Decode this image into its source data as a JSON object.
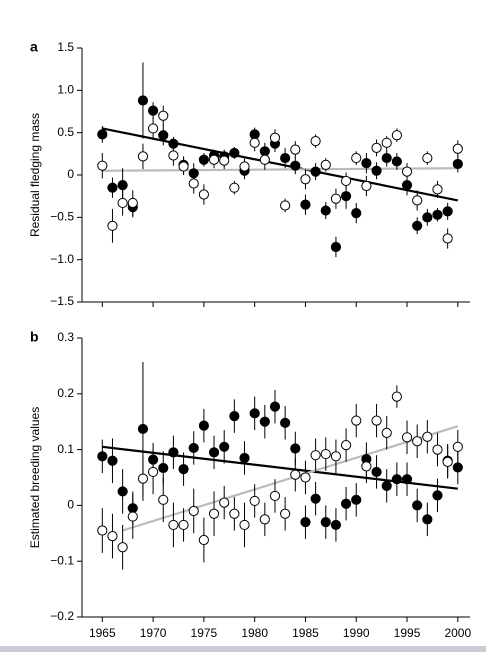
{
  "chart_data": [
    {
      "type": "scatter",
      "panel_label": "a",
      "y_label": "Residual fledging mass",
      "x": [
        1965,
        1966,
        1967,
        1968,
        1969,
        1970,
        1971,
        1972,
        1973,
        1974,
        1975,
        1976,
        1977,
        1978,
        1979,
        1980,
        1981,
        1982,
        1983,
        1984,
        1985,
        1986,
        1987,
        1988,
        1989,
        1990,
        1991,
        1992,
        1993,
        1994,
        1995,
        1996,
        1997,
        1998,
        1999,
        2000
      ],
      "xlim": [
        1963,
        2001.2
      ],
      "ylim": [
        -1.5,
        1.5
      ],
      "yticks": [
        1.5,
        {
          "value": 1.0,
          "label": "1.0"
        },
        0.5,
        0,
        {
          "value": -0.5,
          "label": "−0.5"
        },
        {
          "value": -1.0,
          "label": "−1.0"
        },
        {
          "value": -1.5,
          "label": "−1.5"
        }
      ],
      "series": [
        {
          "color": "#000000",
          "filled": true,
          "values": [
            0.48,
            -0.15,
            -0.12,
            -0.38,
            0.88,
            0.76,
            0.47,
            0.37,
            0.12,
            0.02,
            0.18,
            0.23,
            0.22,
            0.26,
            0.05,
            0.48,
            0.28,
            0.37,
            0.2,
            0.11,
            -0.35,
            0.04,
            -0.42,
            -0.85,
            -0.25,
            -0.45,
            0.14,
            0.05,
            0.2,
            0.16,
            -0.12,
            -0.6,
            -0.5,
            -0.47,
            -0.43,
            0.13
          ],
          "errors": [
            0.1,
            0.12,
            0.2,
            0.12,
            0.45,
            0.1,
            0.12,
            0.08,
            0.1,
            0.12,
            0.08,
            0.07,
            0.08,
            0.07,
            0.1,
            0.08,
            0.1,
            0.1,
            0.12,
            0.1,
            0.12,
            0.1,
            0.1,
            0.12,
            0.15,
            0.12,
            0.12,
            0.1,
            0.1,
            0.1,
            0.12,
            0.1,
            0.1,
            0.08,
            0.1,
            0.1
          ]
        },
        {
          "color": "#000000",
          "filled": false,
          "values": [
            0.11,
            -0.6,
            -0.33,
            -0.33,
            0.22,
            0.55,
            0.7,
            0.23,
            0.1,
            -0.1,
            -0.23,
            0.18,
            0.17,
            -0.15,
            0.1,
            0.38,
            0.18,
            0.44,
            -0.36,
            0.3,
            -0.05,
            0.4,
            0.12,
            -0.28,
            -0.07,
            0.2,
            -0.13,
            0.32,
            0.38,
            0.47,
            0.04,
            -0.3,
            0.2,
            -0.17,
            -0.75,
            0.31
          ],
          "errors": [
            0.15,
            0.2,
            0.15,
            0.15,
            0.15,
            0.12,
            0.12,
            0.12,
            0.1,
            0.12,
            0.12,
            0.1,
            0.1,
            0.08,
            0.1,
            0.1,
            0.12,
            0.1,
            0.08,
            0.1,
            0.12,
            0.08,
            0.08,
            0.12,
            0.1,
            0.08,
            0.12,
            0.1,
            0.08,
            0.08,
            0.1,
            0.12,
            0.08,
            0.1,
            0.12,
            0.1
          ]
        }
      ],
      "lines": [
        {
          "color": "#000000",
          "x": [
            1965,
            2000
          ],
          "values": [
            0.55,
            -0.3
          ]
        },
        {
          "color": "#bbbbbb",
          "x": [
            1965,
            2000
          ],
          "values": [
            0.05,
            0.08
          ]
        }
      ]
    },
    {
      "type": "scatter",
      "panel_label": "b",
      "y_label": "Estimated breeding values",
      "x": [
        1965,
        1966,
        1967,
        1968,
        1969,
        1970,
        1971,
        1972,
        1973,
        1974,
        1975,
        1976,
        1977,
        1978,
        1979,
        1980,
        1981,
        1982,
        1983,
        1984,
        1985,
        1986,
        1987,
        1988,
        1989,
        1990,
        1991,
        1992,
        1993,
        1994,
        1995,
        1996,
        1997,
        1998,
        1999,
        2000
      ],
      "xlim": [
        1963,
        2001.2
      ],
      "ylim": [
        -0.2,
        0.3
      ],
      "xticks": [
        1965,
        1970,
        1975,
        1980,
        1985,
        1990,
        1995,
        2000
      ],
      "yticks": [
        0.3,
        0.2,
        0.1,
        0,
        {
          "value": -0.1,
          "label": "−0.1"
        },
        {
          "value": -0.2,
          "label": "−0.2"
        }
      ],
      "series": [
        {
          "color": "#000000",
          "filled": true,
          "values": [
            0.088,
            0.08,
            0.025,
            -0.005,
            0.137,
            0.082,
            0.067,
            0.095,
            0.065,
            0.103,
            0.143,
            0.095,
            0.105,
            0.16,
            0.085,
            0.165,
            0.15,
            0.177,
            0.148,
            0.102,
            -0.03,
            0.012,
            -0.03,
            -0.035,
            0.003,
            0.01,
            0.083,
            0.06,
            0.035,
            0.047,
            0.047,
            0.0,
            -0.025,
            0.018,
            0.08,
            0.068
          ],
          "errors": [
            0.03,
            0.04,
            0.04,
            0.03,
            0.12,
            0.03,
            0.03,
            0.03,
            0.03,
            0.03,
            0.03,
            0.03,
            0.03,
            0.03,
            0.03,
            0.03,
            0.03,
            0.03,
            0.03,
            0.03,
            0.03,
            0.03,
            0.03,
            0.03,
            0.03,
            0.03,
            0.03,
            0.03,
            0.03,
            0.03,
            0.03,
            0.03,
            0.03,
            0.03,
            0.03,
            0.03
          ]
        },
        {
          "color": "#000000",
          "filled": false,
          "values": [
            -0.045,
            -0.055,
            -0.075,
            -0.02,
            0.048,
            0.06,
            0.01,
            -0.035,
            -0.035,
            -0.01,
            -0.062,
            -0.015,
            0.005,
            -0.015,
            -0.035,
            0.008,
            -0.025,
            0.017,
            -0.015,
            0.055,
            0.05,
            0.09,
            0.092,
            0.088,
            0.108,
            0.152,
            0.07,
            0.152,
            0.13,
            0.195,
            0.122,
            0.115,
            0.123,
            0.1,
            0.078,
            0.105
          ],
          "errors": [
            0.04,
            0.04,
            0.04,
            0.04,
            0.04,
            0.04,
            0.04,
            0.04,
            0.03,
            0.04,
            0.04,
            0.04,
            0.03,
            0.03,
            0.04,
            0.03,
            0.03,
            0.03,
            0.03,
            0.03,
            0.03,
            0.03,
            0.03,
            0.03,
            0.03,
            0.03,
            0.03,
            0.03,
            0.03,
            0.02,
            0.03,
            0.03,
            0.03,
            0.03,
            0.03,
            0.03
          ]
        }
      ],
      "lines": [
        {
          "color": "#000000",
          "x": [
            1965,
            2000
          ],
          "values": [
            0.105,
            0.03
          ]
        },
        {
          "color": "#bbbbbb",
          "x": [
            1967,
            2000
          ],
          "values": [
            -0.045,
            0.142
          ]
        }
      ]
    }
  ]
}
